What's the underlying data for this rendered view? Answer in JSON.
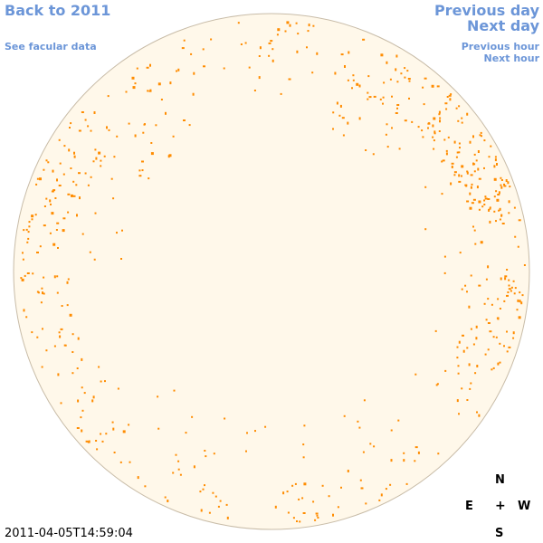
{
  "nav": {
    "back_label": "Back to 2011",
    "facular_label": "See facular data",
    "prev_day_label": "Previous day",
    "next_day_label": "Next day",
    "prev_hour_label": "Previous hour",
    "next_hour_label": "Next hour"
  },
  "timestamp": "2011-04-05T14:59:04",
  "compass": {
    "north": "N",
    "south": "S",
    "east": "E",
    "west": "W",
    "center": "+"
  },
  "colors": {
    "link": "#6c96d8",
    "disk_fill": "#fff8ea",
    "disk_outline": "#c8bca8",
    "facula": "#ff8c00"
  }
}
